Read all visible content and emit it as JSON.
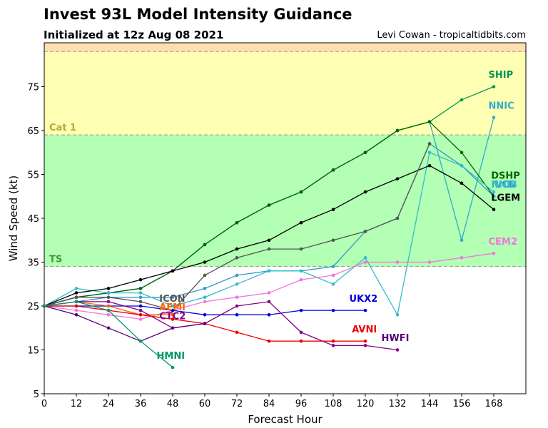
{
  "title": "Invest 93L Model Intensity Guidance",
  "subtitle": "Initialized at 12z Aug 08 2021",
  "credit": "Levi Cowan - tropicaltidbits.com",
  "chart_data": {
    "type": "line",
    "xlabel": "Forecast Hour",
    "ylabel": "Wind Speed (kt)",
    "xlim": [
      0,
      180
    ],
    "ylim": [
      5,
      85
    ],
    "xticks": [
      0,
      12,
      24,
      36,
      48,
      60,
      72,
      84,
      96,
      108,
      120,
      132,
      144,
      156,
      168
    ],
    "yticks": [
      5,
      15,
      25,
      35,
      45,
      55,
      65,
      75
    ],
    "bands": [
      {
        "name": "TS",
        "from": 34,
        "to": 64,
        "color": "#b3ffb3",
        "label_color": "#3d9a3d"
      },
      {
        "name": "Cat 1",
        "from": 64,
        "to": 83,
        "color": "#ffffb3",
        "label_color": "#b5a83b"
      },
      {
        "name": "",
        "from": 83,
        "to": 85,
        "color": "#ffdfb0",
        "label_color": "#ffdfb0"
      }
    ],
    "series": [
      {
        "name": "SHIP",
        "color": "#009955",
        "x": [
          0,
          12,
          24,
          36,
          48,
          60,
          72,
          84,
          96,
          108,
          120,
          132,
          144,
          156,
          168
        ],
        "y": [
          25,
          27,
          28,
          29,
          33,
          39,
          44,
          48,
          51,
          56,
          60,
          65,
          67,
          72,
          75
        ],
        "label_x": 166,
        "label_y": 77
      },
      {
        "name": "NNIC",
        "color": "#33aacc",
        "x": [
          0,
          12,
          24,
          36,
          48,
          60,
          72,
          84,
          96,
          108,
          120,
          132,
          144,
          156,
          168
        ],
        "y": [
          25,
          27,
          28,
          29,
          33,
          39,
          44,
          48,
          51,
          56,
          60,
          65,
          67,
          40,
          68
        ],
        "label_x": 166,
        "label_y": 70
      },
      {
        "name": "DSHP",
        "color": "#006600",
        "x": [
          0,
          12,
          24,
          36,
          48,
          60,
          72,
          84,
          96,
          108,
          120,
          132,
          144,
          156,
          168
        ],
        "y": [
          25,
          27,
          28,
          29,
          33,
          39,
          44,
          48,
          51,
          56,
          60,
          65,
          67,
          60,
          50
        ],
        "label_x": 167,
        "label_y": 54
      },
      {
        "name": "IVCN",
        "color": "#3399cc",
        "x": [
          0,
          12,
          24,
          36,
          48,
          60,
          72,
          84,
          96,
          108,
          120,
          132,
          144,
          156,
          168
        ],
        "y": [
          25,
          26,
          27,
          27,
          27,
          29,
          32,
          33,
          33,
          34,
          42,
          45,
          62,
          57,
          50
        ],
        "label_x": 167,
        "label_y": 52
      },
      {
        "name": "NNIB",
        "color": "#33bbcc",
        "x": [
          0,
          12,
          24,
          36,
          48,
          60,
          72,
          84,
          96,
          108,
          120,
          132,
          144,
          156,
          168
        ],
        "y": [
          25,
          29,
          28,
          28,
          25,
          27,
          30,
          33,
          33,
          30,
          36,
          23,
          60,
          57,
          51
        ],
        "label_x": 167,
        "label_y": 52
      },
      {
        "name": "LGEM",
        "color": "#000000",
        "x": [
          0,
          12,
          24,
          36,
          48,
          60,
          72,
          84,
          96,
          108,
          120,
          132,
          144,
          156,
          168
        ],
        "y": [
          25,
          28,
          29,
          31,
          33,
          35,
          38,
          40,
          44,
          47,
          51,
          54,
          57,
          53,
          47
        ],
        "label_x": 167,
        "label_y": 49
      },
      {
        "name": "CEM2",
        "color": "#ee77dd",
        "x": [
          0,
          12,
          24,
          36,
          48,
          60,
          72,
          84,
          96,
          108,
          120,
          132,
          144,
          156,
          168
        ],
        "y": [
          25,
          24,
          23,
          22,
          24,
          26,
          27,
          28,
          31,
          32,
          35,
          35,
          35,
          36,
          37
        ],
        "label_x": 166,
        "label_y": 39
      },
      {
        "name": "ICON",
        "color": "#555555",
        "x": [
          0,
          12,
          24,
          36,
          48,
          60,
          72,
          84,
          96,
          108,
          120,
          132,
          144
        ],
        "y": [
          25,
          27,
          27,
          26,
          24,
          32,
          36,
          38,
          38,
          40,
          42,
          45,
          62
        ],
        "label_x": 43,
        "label_y": 26
      },
      {
        "name": "UKX2",
        "color": "#0000dd",
        "x": [
          0,
          12,
          24,
          36,
          48,
          60,
          72,
          84,
          96,
          108,
          120
        ],
        "y": [
          25,
          25,
          25,
          25,
          24,
          23,
          23,
          23,
          24,
          24,
          24
        ],
        "label_x": 114,
        "label_y": 26
      },
      {
        "name": "AEMI",
        "color": "#ff6600",
        "x": [
          0,
          12,
          24,
          36,
          48
        ],
        "y": [
          25,
          26,
          25,
          23,
          23
        ],
        "label_x": 43,
        "label_y": 24
      },
      {
        "name": "CTC2",
        "color": "#880088",
        "x": [
          0,
          12,
          24,
          36,
          48,
          60,
          72,
          84,
          96,
          108,
          120,
          132
        ],
        "y": [
          25,
          26,
          26,
          24,
          20,
          21,
          25,
          26,
          19,
          16,
          16,
          15
        ],
        "label_x": 43,
        "label_y": 22
      },
      {
        "name": "AVNI",
        "color": "#ee0000",
        "x": [
          0,
          12,
          24,
          36,
          48,
          60,
          72,
          84,
          96,
          108,
          120
        ],
        "y": [
          25,
          25,
          24,
          23,
          22,
          21,
          19,
          17,
          17,
          17,
          17
        ],
        "label_x": 115,
        "label_y": 19
      },
      {
        "name": "HWFI",
        "color": "#550077",
        "x": [
          0,
          12,
          24,
          36,
          48,
          60
        ],
        "y": [
          25,
          23,
          20,
          17,
          20,
          21
        ],
        "label_x": 126,
        "label_y": 17
      },
      {
        "name": "HMNI",
        "color": "#009966",
        "x": [
          0,
          12,
          24,
          36,
          48
        ],
        "y": [
          25,
          26,
          24,
          17,
          11
        ],
        "label_x": 42,
        "label_y": 13
      }
    ]
  }
}
